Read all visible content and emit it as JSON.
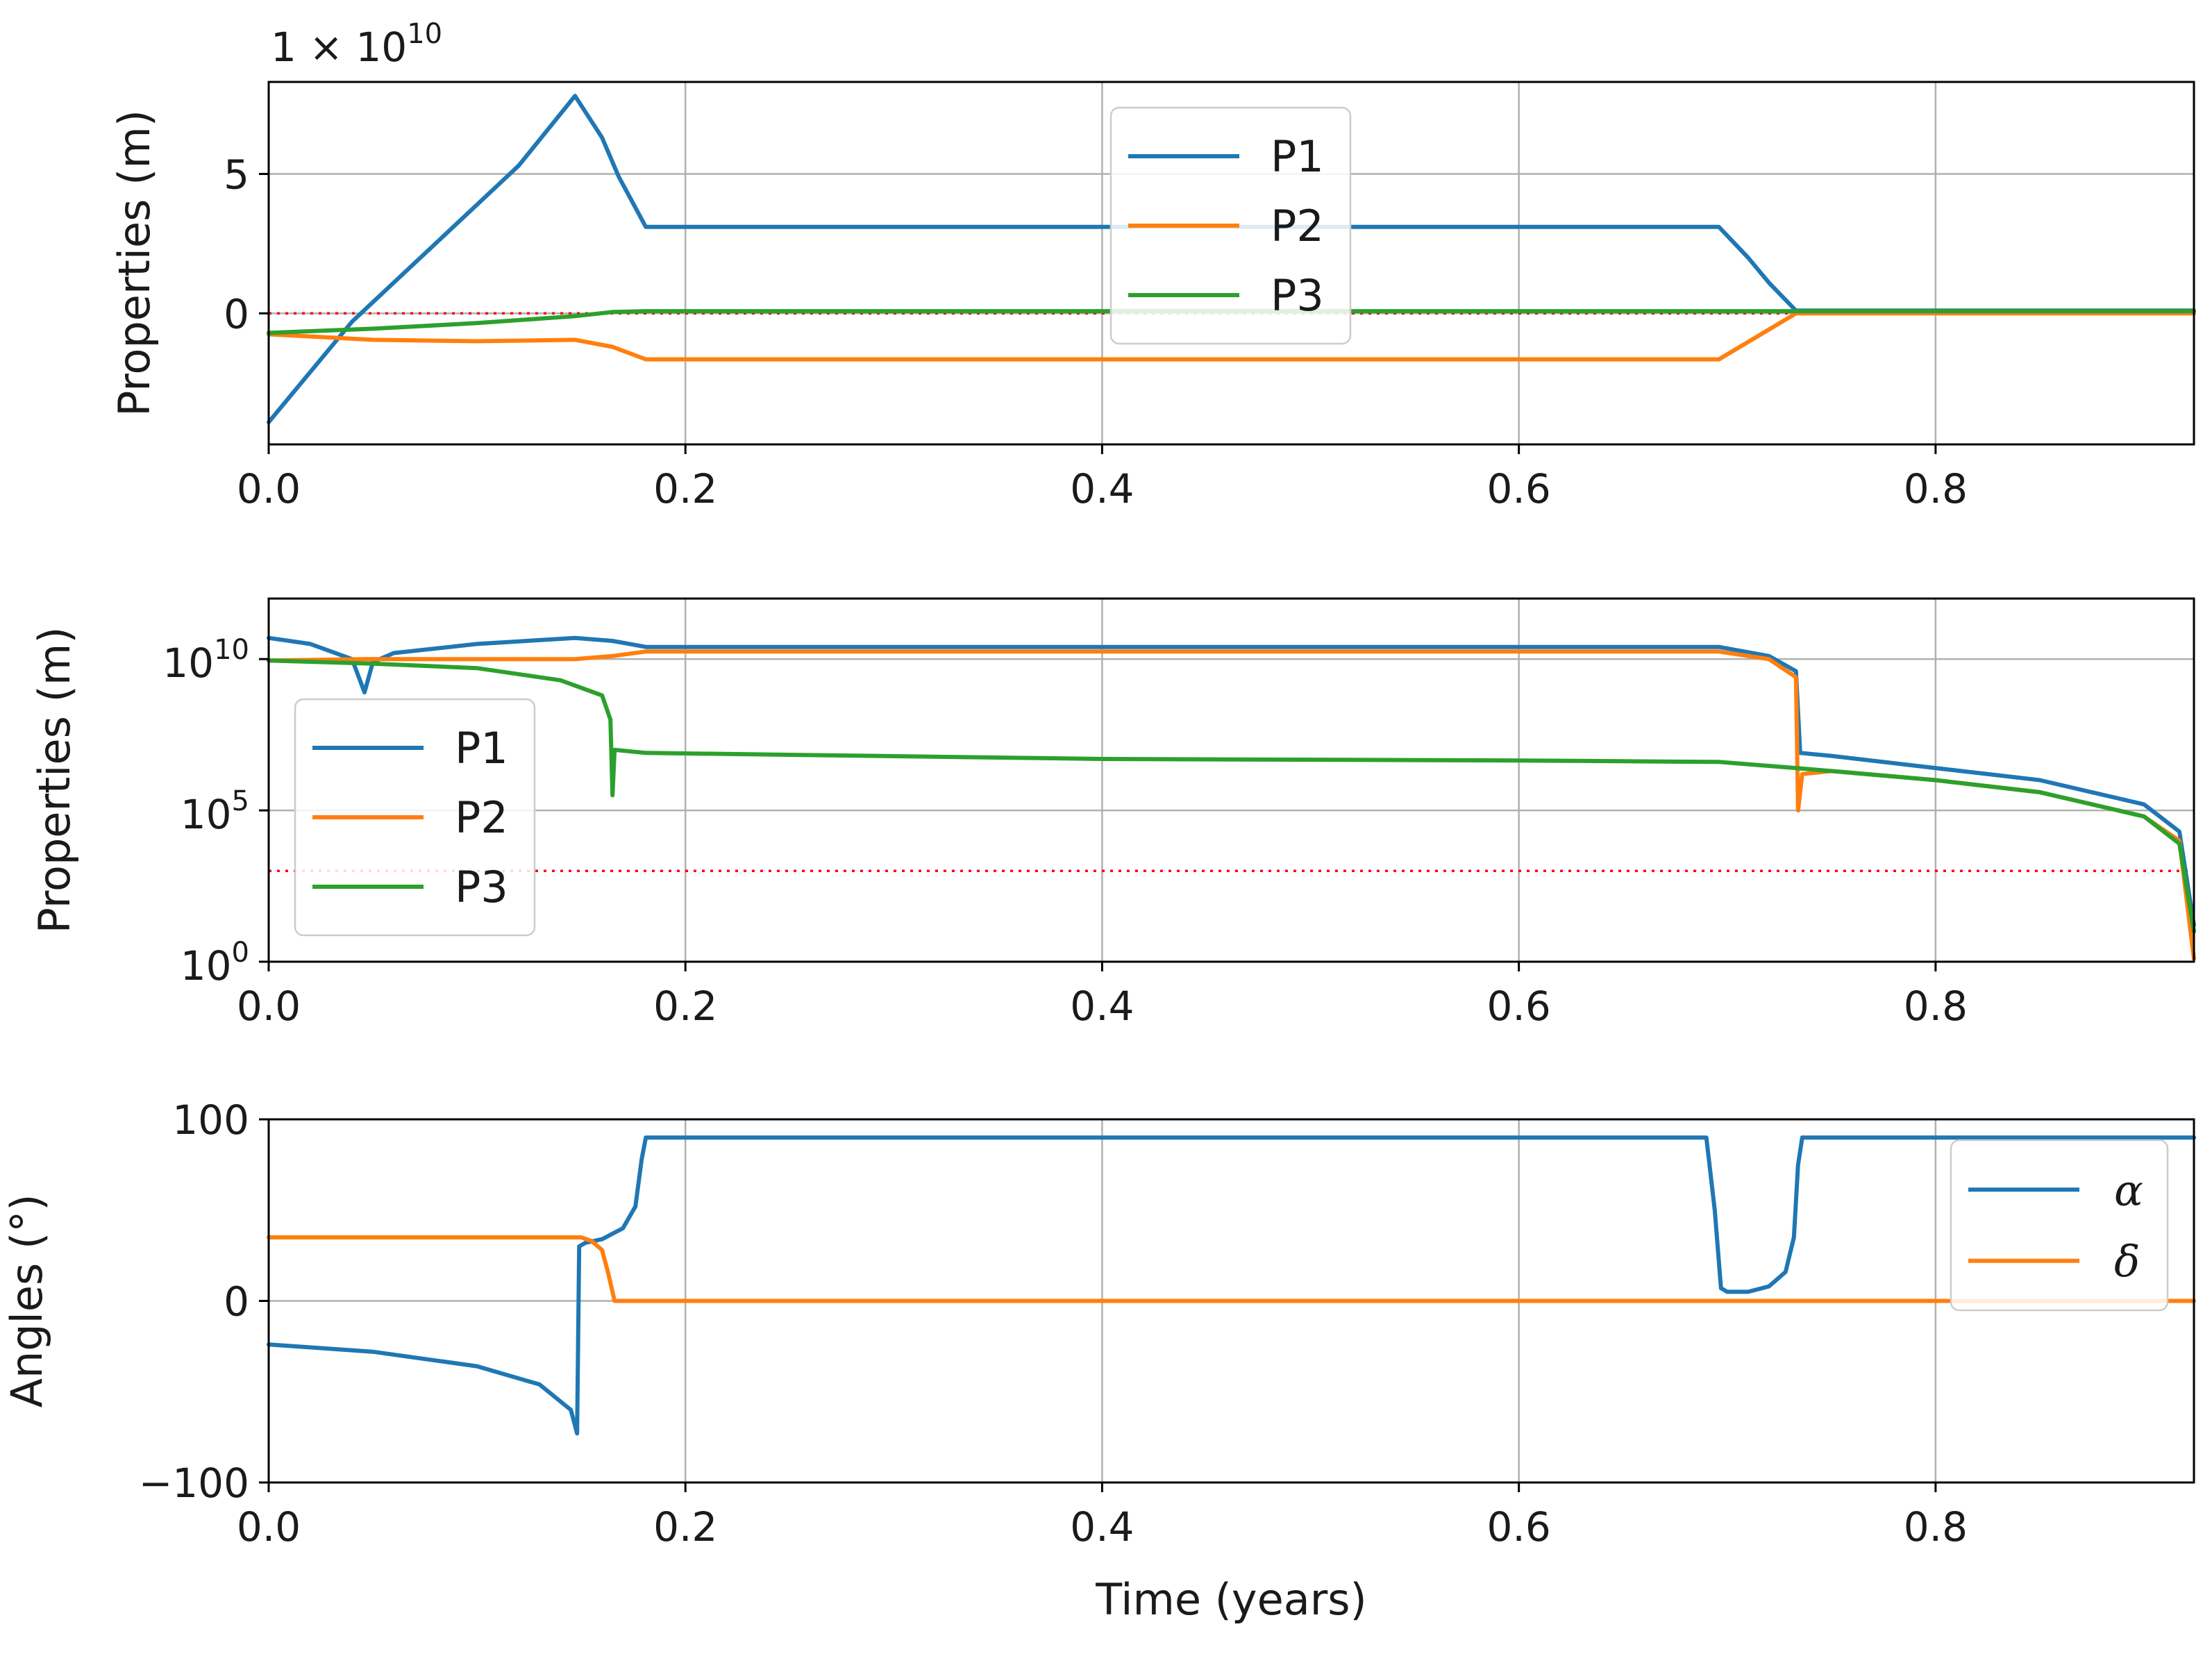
{
  "chart_data": [
    {
      "type": "line",
      "yscale": "linear",
      "ylabel": "Properties (m)",
      "xlabel": "",
      "offset_text": {
        "base": "1 × 10",
        "exp": "10"
      },
      "xlim": [
        0.0,
        0.924
      ],
      "ylim": [
        -4.7,
        8.3
      ],
      "xticks": [
        0.0,
        0.2,
        0.4,
        0.6,
        0.8
      ],
      "xtick_labels": [
        "0.0",
        "0.2",
        "0.4",
        "0.6",
        "0.8"
      ],
      "yticks": [
        0,
        5
      ],
      "ytick_labels": [
        "0",
        "5"
      ],
      "grid": true,
      "legend_position": "upper-center",
      "reference_line": {
        "y": 0,
        "style": "dotted",
        "color": "#ff0000"
      },
      "series": [
        {
          "name": "P1",
          "color": "#1f77b4",
          "x": [
            0.0,
            0.04,
            0.08,
            0.12,
            0.147,
            0.16,
            0.168,
            0.181,
            0.3,
            0.5,
            0.696,
            0.71,
            0.72,
            0.733,
            0.75,
            0.924
          ],
          "y": [
            -3.9,
            -0.3,
            2.5,
            5.3,
            7.8,
            6.3,
            4.9,
            3.1,
            3.1,
            3.1,
            3.1,
            2.0,
            1.1,
            0.1,
            0.1,
            0.1
          ]
        },
        {
          "name": "P2",
          "color": "#ff7f0e",
          "x": [
            0.0,
            0.05,
            0.1,
            0.147,
            0.165,
            0.181,
            0.4,
            0.696,
            0.733,
            0.924
          ],
          "y": [
            -0.75,
            -0.95,
            -1.0,
            -0.95,
            -1.2,
            -1.65,
            -1.65,
            -1.65,
            0.0,
            0.0
          ]
        },
        {
          "name": "P3",
          "color": "#2ca02c",
          "x": [
            0.0,
            0.05,
            0.1,
            0.147,
            0.165,
            0.181,
            0.4,
            0.696,
            0.733,
            0.924
          ],
          "y": [
            -0.7,
            -0.55,
            -0.35,
            -0.1,
            0.05,
            0.08,
            0.08,
            0.08,
            0.08,
            0.08
          ]
        }
      ]
    },
    {
      "type": "line",
      "yscale": "log",
      "ylabel": "Properties (m)",
      "xlabel": "",
      "xlim": [
        0.0,
        0.924
      ],
      "ylim_exp": [
        0,
        12
      ],
      "xticks": [
        0.0,
        0.2,
        0.4,
        0.6,
        0.8
      ],
      "xtick_labels": [
        "0.0",
        "0.2",
        "0.4",
        "0.6",
        "0.8"
      ],
      "yticks_exp": [
        0,
        5,
        10
      ],
      "ytick_labels": [
        {
          "base": "10",
          "exp": "0"
        },
        {
          "base": "10",
          "exp": "5"
        },
        {
          "base": "10",
          "exp": "10"
        }
      ],
      "grid": true,
      "legend_position": "center-left",
      "reference_line": {
        "log10_y": 3,
        "style": "dotted",
        "color": "#ff0000"
      },
      "series": [
        {
          "name": "P1",
          "color": "#1f77b4",
          "x": [
            0.0,
            0.02,
            0.04,
            0.046,
            0.05,
            0.06,
            0.1,
            0.147,
            0.165,
            0.181,
            0.4,
            0.696,
            0.72,
            0.733,
            0.735,
            0.75,
            0.8,
            0.85,
            0.9,
            0.917,
            0.924
          ],
          "log10_y": [
            10.7,
            10.5,
            10.0,
            8.9,
            9.9,
            10.2,
            10.5,
            10.7,
            10.6,
            10.4,
            10.4,
            10.4,
            10.1,
            9.6,
            6.9,
            6.8,
            6.4,
            6.0,
            5.2,
            4.3,
            1.2
          ]
        },
        {
          "name": "P2",
          "color": "#ff7f0e",
          "x": [
            0.0,
            0.046,
            0.1,
            0.147,
            0.165,
            0.181,
            0.4,
            0.696,
            0.72,
            0.733,
            0.734,
            0.736,
            0.75,
            0.8,
            0.85,
            0.9,
            0.917,
            0.924
          ],
          "log10_y": [
            9.95,
            10.0,
            10.0,
            10.0,
            10.1,
            10.25,
            10.25,
            10.25,
            10.0,
            9.4,
            5.0,
            6.2,
            6.3,
            6.0,
            5.6,
            4.8,
            4.0,
            0.1
          ]
        },
        {
          "name": "P3",
          "color": "#2ca02c",
          "x": [
            0.0,
            0.05,
            0.1,
            0.14,
            0.16,
            0.164,
            0.165,
            0.166,
            0.181,
            0.4,
            0.6,
            0.696,
            0.733,
            0.75,
            0.8,
            0.85,
            0.9,
            0.917,
            0.924
          ],
          "log10_y": [
            9.95,
            9.85,
            9.7,
            9.3,
            8.8,
            8.0,
            5.5,
            7.0,
            6.9,
            6.7,
            6.65,
            6.6,
            6.4,
            6.3,
            6.0,
            5.6,
            4.8,
            3.9,
            1.0
          ]
        }
      ]
    },
    {
      "type": "line",
      "yscale": "linear",
      "ylabel": "Angles (°)",
      "xlabel": "Time (years)",
      "xlim": [
        0.0,
        0.924
      ],
      "ylim": [
        -100,
        100
      ],
      "xticks": [
        0.0,
        0.2,
        0.4,
        0.6,
        0.8
      ],
      "xtick_labels": [
        "0.0",
        "0.2",
        "0.4",
        "0.6",
        "0.8"
      ],
      "yticks": [
        -100,
        0,
        100
      ],
      "ytick_labels": [
        "−100",
        "0",
        "100"
      ],
      "grid": true,
      "legend_position": "right",
      "series": [
        {
          "name": "α",
          "color": "#1f77b4",
          "x": [
            0.0,
            0.05,
            0.1,
            0.13,
            0.145,
            0.148,
            0.149,
            0.152,
            0.16,
            0.17,
            0.176,
            0.179,
            0.181,
            0.3,
            0.6,
            0.69,
            0.694,
            0.697,
            0.7,
            0.71,
            0.72,
            0.728,
            0.732,
            0.734,
            0.736,
            0.8,
            0.924
          ],
          "y": [
            -24,
            -28,
            -36,
            -46,
            -60,
            -73,
            30,
            32,
            34,
            40,
            52,
            78,
            90,
            90,
            90,
            90,
            50,
            7,
            5,
            5,
            8,
            16,
            35,
            75,
            90,
            90,
            90
          ]
        },
        {
          "name": "δ",
          "color": "#ff7f0e",
          "x": [
            0.0,
            0.1,
            0.15,
            0.155,
            0.16,
            0.163,
            0.166,
            0.3,
            0.6,
            0.924
          ],
          "y": [
            35,
            35,
            35,
            33,
            28,
            15,
            0,
            0,
            0,
            0
          ]
        }
      ]
    }
  ]
}
